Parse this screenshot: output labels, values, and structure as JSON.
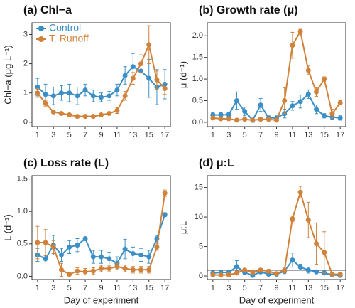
{
  "chart_data": [
    {
      "type": "line",
      "title": "(a) Chl−a",
      "ylabel": "Chl−a (μg L⁻¹)",
      "x": [
        1,
        2,
        3,
        4,
        5,
        6,
        7,
        8,
        9,
        10,
        11,
        12,
        13,
        14,
        15,
        16,
        17
      ],
      "xlim": [
        0.3,
        17.7
      ],
      "xticks": [
        1,
        3,
        5,
        7,
        9,
        11,
        13,
        15,
        17
      ],
      "ylim": [
        -0.15,
        3.4
      ],
      "yticks": [
        0,
        1,
        2,
        3
      ],
      "legend": "top-left",
      "series": [
        {
          "name": "Control",
          "color": "#3b8fc6",
          "values": [
            1.2,
            0.95,
            0.9,
            1.0,
            1.0,
            0.9,
            1.1,
            0.9,
            0.85,
            0.9,
            1.1,
            1.6,
            1.9,
            1.75,
            1.5,
            1.2,
            1.3
          ],
          "errors": [
            0.3,
            0.35,
            0.3,
            0.25,
            0.3,
            0.3,
            0.2,
            0.2,
            0.15,
            0.15,
            0.2,
            0.3,
            0.45,
            0.55,
            0.65,
            0.6,
            0.5
          ]
        },
        {
          "name": "T. Runoff",
          "color": "#d0823a",
          "values": [
            1.0,
            0.65,
            0.35,
            0.3,
            0.25,
            0.2,
            0.2,
            0.2,
            0.25,
            0.3,
            0.4,
            0.9,
            1.5,
            2.0,
            2.65,
            1.45,
            1.15
          ],
          "errors": [
            0.15,
            0.1,
            0.05,
            0.05,
            0.05,
            0.05,
            0.05,
            0.05,
            0.05,
            0.05,
            0.1,
            0.15,
            0.2,
            0.3,
            0.65,
            0.3,
            0.2
          ]
        }
      ]
    },
    {
      "type": "line",
      "title": "(b) Growth rate (μ)",
      "ylabel": "μ (d⁻¹)",
      "x": [
        1,
        2,
        3,
        4,
        5,
        6,
        7,
        8,
        9,
        10,
        11,
        12,
        13,
        14,
        15,
        16,
        17
      ],
      "xlim": [
        0.3,
        17.7
      ],
      "xticks": [
        1,
        3,
        5,
        7,
        9,
        11,
        13,
        15,
        17
      ],
      "ylim": [
        -0.1,
        2.3
      ],
      "yticks": [
        {
          "value": 0,
          "label": "0.0"
        },
        0.5,
        {
          "value": 1,
          "label": "1.0"
        },
        1.5,
        {
          "value": 2,
          "label": "2.0"
        }
      ],
      "series": [
        {
          "color": "#3b8fc6",
          "values": [
            0.17,
            0.17,
            0.18,
            0.5,
            0.25,
            0.05,
            0.4,
            0.1,
            0.1,
            0.2,
            0.38,
            0.48,
            0.65,
            0.3,
            0.15,
            0.12,
            0.1
          ],
          "errors": [
            0.05,
            0.05,
            0.05,
            0.2,
            0.1,
            0.05,
            0.15,
            0.05,
            0.05,
            0.1,
            0.1,
            0.15,
            0.1,
            0.1,
            0.05,
            0.05,
            0.05
          ]
        },
        {
          "color": "#d0823a",
          "values": [
            0.1,
            0.08,
            0.08,
            0.05,
            0.07,
            0.05,
            0.07,
            0.07,
            0.05,
            0.5,
            1.78,
            2.1,
            1.2,
            0.7,
            1.0,
            0.2,
            0.45
          ],
          "errors": [
            0.02,
            0.02,
            0.02,
            0.02,
            0.02,
            0.02,
            0.02,
            0.02,
            0.02,
            0.3,
            0.3,
            0.05,
            0.1,
            0.1,
            0.05,
            0.1,
            0.05
          ]
        }
      ]
    },
    {
      "type": "line",
      "title": "(c) Loss rate (L)",
      "ylabel": "L (d⁻¹)",
      "xlabel": "Day of experiment",
      "x": [
        1,
        2,
        3,
        4,
        5,
        6,
        7,
        8,
        9,
        10,
        11,
        12,
        13,
        14,
        15,
        16,
        17
      ],
      "xlim": [
        0.3,
        17.7
      ],
      "xticks": [
        1,
        3,
        5,
        7,
        9,
        11,
        13,
        15,
        17
      ],
      "ylim": [
        -0.05,
        1.55
      ],
      "yticks": [
        {
          "value": 0,
          "label": "0.0"
        },
        0.5,
        {
          "value": 1,
          "label": "1.0"
        },
        1.5
      ],
      "series": [
        {
          "color": "#3b8fc6",
          "values": [
            0.33,
            0.27,
            0.48,
            0.33,
            0.45,
            0.48,
            0.58,
            0.3,
            0.3,
            0.27,
            0.2,
            0.42,
            0.35,
            0.33,
            0.3,
            0.58,
            0.95
          ],
          "errors": [
            0.1,
            0.05,
            0.15,
            0.1,
            0.1,
            0.1,
            0.02,
            0.1,
            0.1,
            0.1,
            0.1,
            0.15,
            0.1,
            0.1,
            0.1,
            0.05,
            0.03
          ]
        },
        {
          "color": "#d0823a",
          "values": [
            0.52,
            0.52,
            0.45,
            0.1,
            0.03,
            0.08,
            0.07,
            0.08,
            0.12,
            0.12,
            0.15,
            0.12,
            0.1,
            0.1,
            0.1,
            0.45,
            1.28
          ],
          "errors": [
            0.25,
            0.2,
            0.1,
            0.1,
            0.02,
            0.05,
            0.05,
            0.05,
            0.05,
            0.05,
            0.05,
            0.05,
            0.05,
            0.05,
            0.05,
            0.05,
            0.05
          ]
        }
      ]
    },
    {
      "type": "line",
      "title": "(d) μ:L",
      "ylabel": "μ:L",
      "xlabel": "Day of experiment",
      "x": [
        1,
        2,
        3,
        4,
        5,
        6,
        7,
        8,
        9,
        10,
        11,
        12,
        13,
        14,
        15,
        16,
        17
      ],
      "xlim": [
        0.3,
        17.7
      ],
      "xticks": [
        1,
        3,
        5,
        7,
        9,
        11,
        13,
        15,
        17
      ],
      "ylim": [
        -0.6,
        17
      ],
      "yticks": [
        0,
        5,
        10,
        15
      ],
      "hline": 1,
      "series": [
        {
          "color": "#3b8fc6",
          "values": [
            0.5,
            0.6,
            0.6,
            1.6,
            0.6,
            0.1,
            0.7,
            0.3,
            0.3,
            0.8,
            2.7,
            1.5,
            1.0,
            0.7,
            0.5,
            0.2,
            0.1
          ],
          "errors": [
            0.3,
            0.3,
            0.3,
            1.0,
            0.3,
            0.1,
            0.3,
            0.2,
            0.2,
            0.4,
            1.2,
            0.5,
            0.5,
            0.3,
            0.3,
            0.1,
            0.1
          ]
        },
        {
          "color": "#d0823a",
          "values": [
            0.2,
            0.15,
            0.2,
            0.5,
            1.0,
            0.6,
            1.0,
            0.8,
            0.4,
            1.0,
            9.7,
            14.2,
            9.5,
            5.5,
            4.0,
            0.3,
            0.3
          ],
          "errors": [
            0.1,
            0.1,
            0.1,
            0.3,
            0.3,
            0.3,
            0.3,
            0.3,
            0.2,
            0.5,
            0.5,
            1.0,
            3.0,
            3.5,
            3.5,
            0.2,
            0.1
          ]
        }
      ]
    }
  ]
}
